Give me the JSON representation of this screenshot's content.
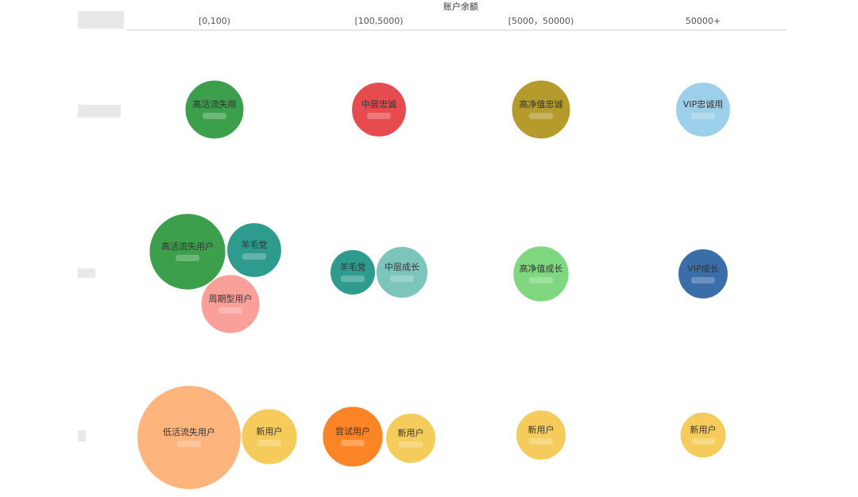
{
  "chart_data": {
    "type": "bubble",
    "x_axis_title": "账户余额",
    "categories": [
      "[0,100)",
      "[100,5000)",
      "[5000，50000)",
      "50000+"
    ],
    "row_labels": [
      "",
      "",
      ""
    ],
    "bubbles": [
      {
        "label": "高活流失用",
        "col": 0,
        "row": 0,
        "size": 1.0,
        "color": "#3c9f4b"
      },
      {
        "label": "中层忠诚",
        "col": 1,
        "row": 0,
        "size": 0.93,
        "color": "#e64b4f"
      },
      {
        "label": "高净值忠诚",
        "col": 2,
        "row": 0,
        "size": 1.0,
        "color": "#b59a2c"
      },
      {
        "label": "VIP忠诚用",
        "col": 3,
        "row": 0,
        "size": 0.93,
        "color": "#9ccfea"
      },
      {
        "label": "高活流失用户",
        "col": 0,
        "row": 1,
        "size": 1.3,
        "color": "#3c9f4b"
      },
      {
        "label": "羊毛党",
        "col": 0,
        "row": 1,
        "size": 0.93,
        "color": "#2f9b8e"
      },
      {
        "label": "周期型用户",
        "col": 0,
        "row": 1,
        "size": 1.0,
        "color": "#fb9f9b"
      },
      {
        "label": "羊毛党",
        "col": 1,
        "row": 1,
        "size": 0.77,
        "color": "#2f9b8e"
      },
      {
        "label": "中层成长",
        "col": 1,
        "row": 1,
        "size": 0.88,
        "color": "#7dc4bc"
      },
      {
        "label": "高净值成长",
        "col": 2,
        "row": 1,
        "size": 0.95,
        "color": "#7fd880"
      },
      {
        "label": "VIP成长",
        "col": 3,
        "row": 1,
        "size": 0.85,
        "color": "#3a6ea8"
      },
      {
        "label": "低活流失用户",
        "col": 0,
        "row": 2,
        "size": 1.77,
        "color": "#fdb57d"
      },
      {
        "label": "新用户",
        "col": 0,
        "row": 2,
        "size": 0.95,
        "color": "#f5cc5b"
      },
      {
        "label": "尝试用户",
        "col": 1,
        "row": 2,
        "size": 1.03,
        "color": "#fb8526"
      },
      {
        "label": "新用户",
        "col": 1,
        "row": 2,
        "size": 0.85,
        "color": "#f5cc5b"
      },
      {
        "label": "新用户",
        "col": 2,
        "row": 2,
        "size": 0.85,
        "color": "#f5cc5b"
      },
      {
        "label": "新用户",
        "col": 3,
        "row": 2,
        "size": 0.78,
        "color": "#f5cc5b"
      }
    ]
  }
}
